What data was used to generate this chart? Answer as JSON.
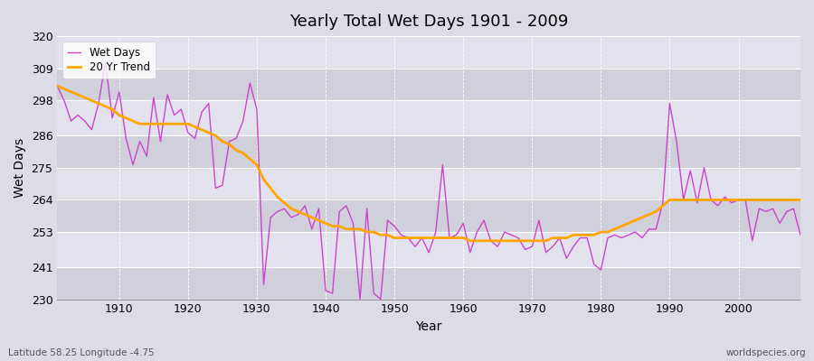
{
  "title": "Yearly Total Wet Days 1901 - 2009",
  "xlabel": "Year",
  "ylabel": "Wet Days",
  "subtitle_left": "Latitude 58.25 Longitude -4.75",
  "subtitle_right": "worldspecies.org",
  "ylim": [
    230,
    320
  ],
  "yticks": [
    230,
    241,
    253,
    264,
    275,
    286,
    298,
    309,
    320
  ],
  "xlim": [
    1901,
    2009
  ],
  "xticks": [
    1910,
    1920,
    1930,
    1940,
    1950,
    1960,
    1970,
    1980,
    1990,
    2000
  ],
  "line_color": "#CC44CC",
  "trend_color": "#FFA500",
  "bg_color": "#DCDCE8",
  "plot_bg_color": "#DCDCE8",
  "legend_labels": [
    "Wet Days",
    "20 Yr Trend"
  ],
  "legend_loc": "upper left",
  "years": [
    1901,
    1902,
    1903,
    1904,
    1905,
    1906,
    1907,
    1908,
    1909,
    1910,
    1911,
    1912,
    1913,
    1914,
    1915,
    1916,
    1917,
    1918,
    1919,
    1920,
    1921,
    1922,
    1923,
    1924,
    1925,
    1926,
    1927,
    1928,
    1929,
    1930,
    1931,
    1932,
    1933,
    1934,
    1935,
    1936,
    1937,
    1938,
    1939,
    1940,
    1941,
    1942,
    1943,
    1944,
    1945,
    1946,
    1947,
    1948,
    1949,
    1950,
    1951,
    1952,
    1953,
    1954,
    1955,
    1956,
    1957,
    1958,
    1959,
    1960,
    1961,
    1962,
    1963,
    1964,
    1965,
    1966,
    1967,
    1968,
    1969,
    1970,
    1971,
    1972,
    1973,
    1974,
    1975,
    1976,
    1977,
    1978,
    1979,
    1980,
    1981,
    1982,
    1983,
    1984,
    1985,
    1986,
    1987,
    1988,
    1989,
    1990,
    1991,
    1992,
    1993,
    1994,
    1995,
    1996,
    1997,
    1998,
    1999,
    2000,
    2001,
    2002,
    2003,
    2004,
    2005,
    2006,
    2007,
    2008,
    2009
  ],
  "wet_days": [
    303,
    298,
    291,
    293,
    291,
    288,
    297,
    311,
    292,
    301,
    285,
    276,
    284,
    279,
    299,
    284,
    300,
    293,
    295,
    287,
    285,
    294,
    297,
    268,
    269,
    284,
    285,
    291,
    304,
    295,
    235,
    258,
    260,
    261,
    258,
    259,
    262,
    254,
    261,
    233,
    232,
    260,
    262,
    256,
    230,
    261,
    232,
    230,
    257,
    255,
    252,
    251,
    248,
    251,
    246,
    253,
    276,
    251,
    252,
    256,
    246,
    253,
    257,
    250,
    248,
    253,
    252,
    251,
    247,
    248,
    257,
    246,
    248,
    251,
    244,
    248,
    251,
    251,
    242,
    240,
    251,
    252,
    251,
    252,
    253,
    251,
    254,
    254,
    263,
    297,
    284,
    264,
    274,
    263,
    275,
    264,
    262,
    265,
    263,
    264,
    264,
    250,
    261,
    260,
    261,
    256,
    260,
    261,
    252
  ],
  "trend": [
    303,
    302,
    301,
    300,
    299,
    298,
    297,
    296,
    295,
    293,
    292,
    291,
    290,
    290,
    290,
    290,
    290,
    290,
    290,
    290,
    289,
    288,
    287,
    286,
    284,
    283,
    281,
    280,
    278,
    276,
    271,
    268,
    265,
    263,
    261,
    260,
    259,
    258,
    257,
    256,
    255,
    255,
    254,
    254,
    254,
    253,
    253,
    252,
    252,
    251,
    251,
    251,
    251,
    251,
    251,
    251,
    251,
    251,
    251,
    251,
    250,
    250,
    250,
    250,
    250,
    250,
    250,
    250,
    250,
    250,
    250,
    250,
    251,
    251,
    251,
    252,
    252,
    252,
    252,
    253,
    253,
    254,
    255,
    256,
    257,
    258,
    259,
    260,
    262,
    264,
    264,
    264,
    264,
    264,
    264,
    264,
    264,
    264,
    264,
    264,
    264,
    264,
    264,
    264,
    264,
    264,
    264,
    264,
    264
  ]
}
